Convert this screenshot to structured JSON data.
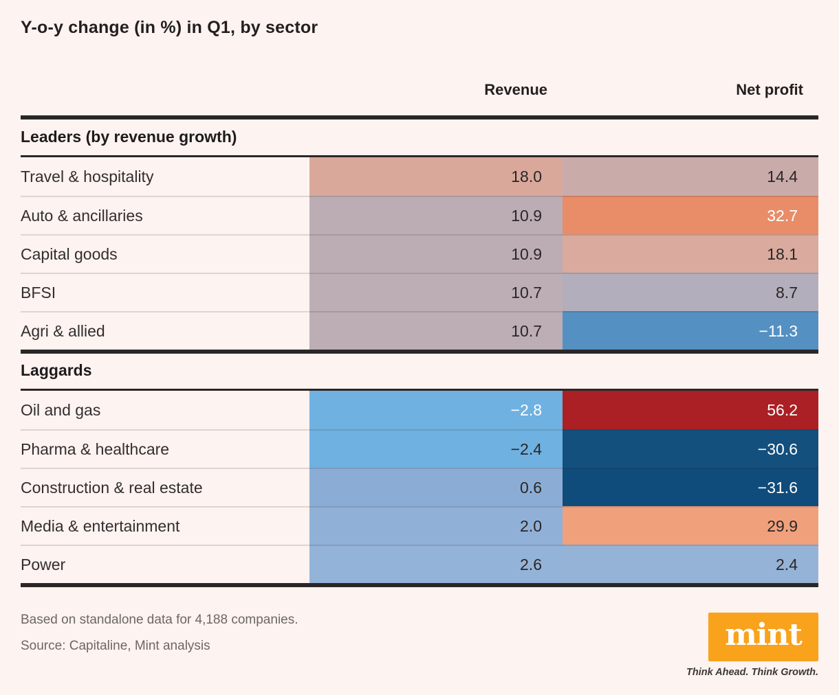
{
  "title": "Y-o-y change (in %) in Q1, by sector",
  "columns": {
    "revenue": "Revenue",
    "net_profit": "Net profit"
  },
  "colors": {
    "background": "#fdf3f0",
    "rule": "#2b2627",
    "logo_bg": "#f9a21c"
  },
  "sections": [
    {
      "label": "Leaders (by revenue growth)",
      "rows": [
        {
          "sector": "Travel & hospitality",
          "revenue": {
            "value": "18.0",
            "bg": "#d9a89b",
            "fg": "#2a2627"
          },
          "net_profit": {
            "value": "14.4",
            "bg": "#c9abaa",
            "fg": "#2a2627"
          }
        },
        {
          "sector": "Auto & ancillaries",
          "revenue": {
            "value": "10.9",
            "bg": "#bcadb4",
            "fg": "#2a2627"
          },
          "net_profit": {
            "value": "32.7",
            "bg": "#e88d67",
            "fg": "#ffffff"
          }
        },
        {
          "sector": "Capital goods",
          "revenue": {
            "value": "10.9",
            "bg": "#bcadb4",
            "fg": "#2a2627"
          },
          "net_profit": {
            "value": "18.1",
            "bg": "#d9aa9d",
            "fg": "#2a2627"
          }
        },
        {
          "sector": "BFSI",
          "revenue": {
            "value": "10.7",
            "bg": "#bdaeb5",
            "fg": "#2a2627"
          },
          "net_profit": {
            "value": "8.7",
            "bg": "#b2aebc",
            "fg": "#2a2627"
          }
        },
        {
          "sector": "Agri & allied",
          "revenue": {
            "value": "10.7",
            "bg": "#bdaeb5",
            "fg": "#2a2627"
          },
          "net_profit": {
            "value": "−11.3",
            "bg": "#5590c2",
            "fg": "#ffffff"
          }
        }
      ]
    },
    {
      "label": "Laggards",
      "rows": [
        {
          "sector": "Oil and gas",
          "revenue": {
            "value": "−2.8",
            "bg": "#6fb1e1",
            "fg": "#ffffff"
          },
          "net_profit": {
            "value": "56.2",
            "bg": "#aa2024",
            "fg": "#ffffff"
          }
        },
        {
          "sector": "Pharma & healthcare",
          "revenue": {
            "value": "−2.4",
            "bg": "#6fb1e1",
            "fg": "#2a2627"
          },
          "net_profit": {
            "value": "−30.6",
            "bg": "#14507e",
            "fg": "#ffffff"
          }
        },
        {
          "sector": "Construction & real estate",
          "revenue": {
            "value": "0.6",
            "bg": "#8badd5",
            "fg": "#2a2627"
          },
          "net_profit": {
            "value": "−31.6",
            "bg": "#104c7b",
            "fg": "#ffffff"
          }
        },
        {
          "sector": "Media & entertainment",
          "revenue": {
            "value": "2.0",
            "bg": "#90b0d7",
            "fg": "#2a2627"
          },
          "net_profit": {
            "value": "29.9",
            "bg": "#f0a17b",
            "fg": "#2a2627"
          }
        },
        {
          "sector": "Power",
          "revenue": {
            "value": "2.6",
            "bg": "#94b3d8",
            "fg": "#2a2627"
          },
          "net_profit": {
            "value": "2.4",
            "bg": "#95b3d6",
            "fg": "#2a2627"
          }
        }
      ]
    }
  ],
  "footer": {
    "note": "Based on standalone data for 4,188 companies.",
    "source": "Source: Capitaline, Mint analysis"
  },
  "logo": {
    "wordmark": "mint",
    "tagline": "Think Ahead. Think Growth."
  },
  "chart_data": {
    "type": "heatmap",
    "title": "Y-o-y change (in %) in Q1, by sector",
    "columns": [
      "Revenue",
      "Net profit"
    ],
    "unit": "percent",
    "groups": [
      {
        "name": "Leaders (by revenue growth)",
        "rows": [
          {
            "sector": "Travel & hospitality",
            "revenue": 18.0,
            "net_profit": 14.4
          },
          {
            "sector": "Auto & ancillaries",
            "revenue": 10.9,
            "net_profit": 32.7
          },
          {
            "sector": "Capital goods",
            "revenue": 10.9,
            "net_profit": 18.1
          },
          {
            "sector": "BFSI",
            "revenue": 10.7,
            "net_profit": 8.7
          },
          {
            "sector": "Agri & allied",
            "revenue": 10.7,
            "net_profit": -11.3
          }
        ]
      },
      {
        "name": "Laggards",
        "rows": [
          {
            "sector": "Oil and gas",
            "revenue": -2.8,
            "net_profit": 56.2
          },
          {
            "sector": "Pharma & healthcare",
            "revenue": -2.4,
            "net_profit": -30.6
          },
          {
            "sector": "Construction & real estate",
            "revenue": 0.6,
            "net_profit": -31.6
          },
          {
            "sector": "Media & entertainment",
            "revenue": 2.0,
            "net_profit": 29.9
          },
          {
            "sector": "Power",
            "revenue": 2.6,
            "net_profit": 2.4
          }
        ]
      }
    ],
    "legend": "none",
    "source_note": "Based on standalone data for 4,188 companies. Source: Capitaline, Mint analysis"
  }
}
